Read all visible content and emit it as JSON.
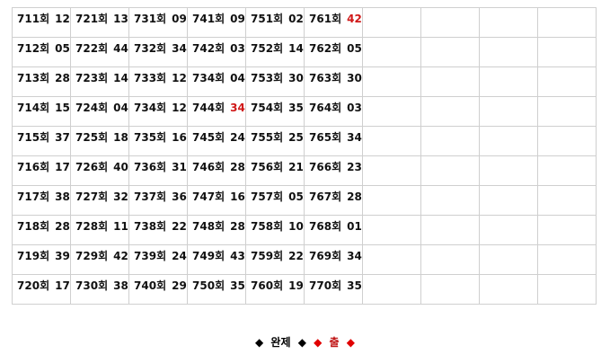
{
  "round_suffix": "회",
  "highlight_color": "#d01818",
  "empty_columns": 4,
  "rows": [
    [
      [
        "711",
        "12",
        false
      ],
      [
        "721",
        "13",
        false
      ],
      [
        "731",
        "09",
        false
      ],
      [
        "741",
        "09",
        false
      ],
      [
        "751",
        "02",
        false
      ],
      [
        "761",
        "42",
        true
      ]
    ],
    [
      [
        "712",
        "05",
        false
      ],
      [
        "722",
        "44",
        false
      ],
      [
        "732",
        "34",
        false
      ],
      [
        "742",
        "03",
        false
      ],
      [
        "752",
        "14",
        false
      ],
      [
        "762",
        "05",
        false
      ]
    ],
    [
      [
        "713",
        "28",
        false
      ],
      [
        "723",
        "14",
        false
      ],
      [
        "733",
        "12",
        false
      ],
      [
        "734",
        "04",
        false
      ],
      [
        "753",
        "30",
        false
      ],
      [
        "763",
        "30",
        false
      ]
    ],
    [
      [
        "714",
        "15",
        false
      ],
      [
        "724",
        "04",
        false
      ],
      [
        "734",
        "12",
        false
      ],
      [
        "744",
        "34",
        true
      ],
      [
        "754",
        "35",
        false
      ],
      [
        "764",
        "03",
        false
      ]
    ],
    [
      [
        "715",
        "37",
        false
      ],
      [
        "725",
        "18",
        false
      ],
      [
        "735",
        "16",
        false
      ],
      [
        "745",
        "24",
        false
      ],
      [
        "755",
        "25",
        false
      ],
      [
        "765",
        "34",
        false
      ]
    ],
    [
      [
        "716",
        "17",
        false
      ],
      [
        "726",
        "40",
        false
      ],
      [
        "736",
        "31",
        false
      ],
      [
        "746",
        "28",
        false
      ],
      [
        "756",
        "21",
        false
      ],
      [
        "766",
        "23",
        false
      ]
    ],
    [
      [
        "717",
        "38",
        false
      ],
      [
        "727",
        "32",
        false
      ],
      [
        "737",
        "36",
        false
      ],
      [
        "747",
        "16",
        false
      ],
      [
        "757",
        "05",
        false
      ],
      [
        "767",
        "28",
        false
      ]
    ],
    [
      [
        "718",
        "28",
        false
      ],
      [
        "728",
        "11",
        false
      ],
      [
        "738",
        "22",
        false
      ],
      [
        "748",
        "28",
        false
      ],
      [
        "758",
        "10",
        false
      ],
      [
        "768",
        "01",
        false
      ]
    ],
    [
      [
        "719",
        "39",
        false
      ],
      [
        "729",
        "42",
        false
      ],
      [
        "739",
        "24",
        false
      ],
      [
        "749",
        "43",
        false
      ],
      [
        "759",
        "22",
        false
      ],
      [
        "769",
        "34",
        false
      ]
    ],
    [
      [
        "720",
        "17",
        false
      ],
      [
        "730",
        "38",
        false
      ],
      [
        "740",
        "29",
        false
      ],
      [
        "750",
        "35",
        false
      ],
      [
        "760",
        "19",
        false
      ],
      [
        "770",
        "35",
        false
      ]
    ]
  ],
  "footer": {
    "diamond": "◆",
    "complete_label": "완제",
    "out_label": "출"
  }
}
